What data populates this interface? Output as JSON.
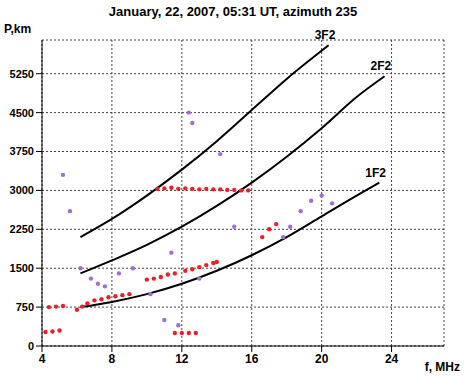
{
  "chart_data": {
    "type": "scatter",
    "title": "January, 22, 2007, 05:31 UT,  azimuth 235",
    "xlabel": "f, MHz",
    "ylabel": "P,km",
    "xlim": [
      4,
      27
    ],
    "ylim": [
      0,
      5900
    ],
    "xticks": [
      4,
      8,
      12,
      16,
      20,
      24
    ],
    "yticks": [
      0,
      750,
      1500,
      2250,
      3000,
      3750,
      4500,
      5250
    ],
    "grid": true,
    "series": [
      {
        "color": "#a070d0",
        "marker": "circle",
        "x": [
          5.2,
          5.6,
          6.2,
          6.8,
          7.2,
          7.6,
          8.4,
          9.2,
          10.2,
          11.4,
          12.4,
          12.6,
          13.0,
          14.2,
          15.0,
          18.2,
          18.8,
          19.4,
          20.0,
          20.6,
          17.8,
          11.0,
          11.8
        ],
        "values": [
          3300,
          2600,
          1500,
          1300,
          1200,
          1150,
          1400,
          1500,
          1000,
          1800,
          4500,
          4300,
          1300,
          3700,
          2300,
          2300,
          2600,
          2800,
          2900,
          2750,
          2100,
          500,
          400
        ]
      },
      {
        "color": "#e8202a",
        "marker": "circle",
        "x": [
          4.2,
          4.6,
          5.0,
          4.4,
          4.8,
          5.2,
          6.0,
          6.3,
          6.6,
          7.0,
          7.4,
          7.8,
          8.2,
          8.6,
          9.0,
          10.0,
          10.4,
          10.8,
          11.2,
          11.6,
          12.2,
          12.6,
          13.0,
          13.4,
          13.8,
          14.0,
          16.6,
          17.0,
          17.4,
          10.6,
          11.0,
          11.4,
          11.8,
          12.2,
          12.6,
          13.0,
          13.4,
          13.8,
          14.2,
          14.6,
          15.0,
          15.4,
          15.8,
          11.6,
          12.0,
          12.4,
          12.8
        ],
        "values": [
          270,
          280,
          300,
          750,
          760,
          770,
          700,
          760,
          820,
          880,
          900,
          940,
          960,
          980,
          1000,
          1280,
          1300,
          1330,
          1380,
          1400,
          1450,
          1480,
          1520,
          1560,
          1600,
          1620,
          2100,
          2250,
          2350,
          3030,
          3040,
          3050,
          3030,
          3040,
          3030,
          3020,
          3030,
          3020,
          3020,
          3010,
          3010,
          3000,
          3000,
          250,
          250,
          250,
          250
        ]
      },
      {
        "name": "1F2",
        "type": "line",
        "color": "#000000",
        "line_style": "solid",
        "x": [
          6.2,
          8,
          10,
          12,
          14,
          16,
          18,
          20,
          22,
          23.3
        ],
        "values": [
          750,
          850,
          1000,
          1200,
          1450,
          1750,
          2100,
          2500,
          2900,
          3150
        ]
      },
      {
        "name": "2F2",
        "type": "line",
        "color": "#000000",
        "line_style": "solid",
        "x": [
          6.2,
          8,
          10,
          12,
          14,
          16,
          18,
          20,
          22,
          23.6
        ],
        "values": [
          1400,
          1650,
          1950,
          2300,
          2700,
          3150,
          3650,
          4200,
          4800,
          5200
        ]
      },
      {
        "name": "3F2",
        "type": "line",
        "color": "#000000",
        "line_style": "solid",
        "x": [
          6.2,
          8,
          10,
          12,
          14,
          16,
          18,
          20.4
        ],
        "values": [
          2100,
          2450,
          2900,
          3400,
          3950,
          4550,
          5150,
          5800
        ]
      }
    ]
  }
}
